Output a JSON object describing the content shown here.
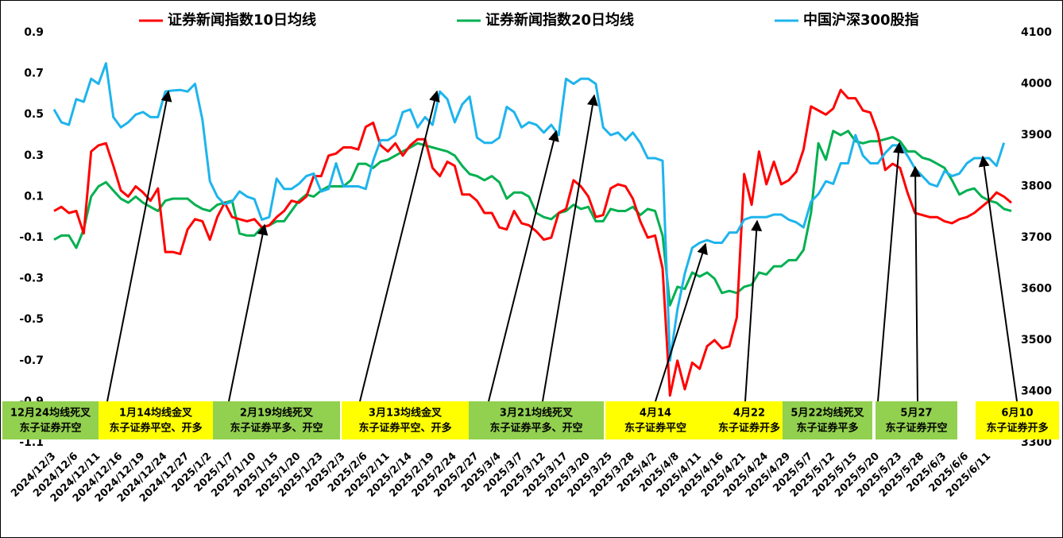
{
  "chart_data": {
    "type": "line",
    "categories": [
      "2024/12/3",
      null,
      null,
      "2024/12/6",
      null,
      null,
      "2024/12/11",
      null,
      null,
      "2024/12/16",
      null,
      null,
      "2024/12/19",
      null,
      null,
      "2024/12/24",
      null,
      null,
      "2024/12/27",
      null,
      null,
      "2025/1/2",
      null,
      null,
      "2025/1/7",
      null,
      null,
      "2025/1/10",
      null,
      null,
      "2025/1/15",
      null,
      null,
      "2025/1/20",
      null,
      null,
      "2025/1/23",
      null,
      null,
      "2025/2/3",
      null,
      null,
      "2025/2/6",
      null,
      null,
      "2025/2/11",
      null,
      null,
      "2025/2/14",
      null,
      null,
      "2025/2/19",
      null,
      null,
      "2025/2/24",
      null,
      null,
      "2025/2/27",
      null,
      null,
      "2025/3/4",
      null,
      null,
      "2025/3/7",
      null,
      null,
      "2025/3/12",
      null,
      null,
      "2025/3/17",
      null,
      null,
      "2025/3/20",
      null,
      null,
      "2025/3/25",
      null,
      null,
      "2025/3/28",
      null,
      null,
      "2025/4/2",
      null,
      null,
      "2025/4/8",
      null,
      null,
      "2025/4/11",
      null,
      null,
      "2025/4/16",
      null,
      null,
      "2025/4/21",
      null,
      null,
      "2025/4/24",
      null,
      null,
      "2025/4/29",
      null,
      null,
      "2025/5/7",
      null,
      null,
      "2025/5/12",
      null,
      null,
      "2025/5/15",
      null,
      null,
      "2025/5/20",
      null,
      null,
      "2025/5/23",
      null,
      null,
      "2025/5/28",
      null,
      null,
      "2025/6/3",
      null,
      null,
      "2025/6/6",
      null,
      null,
      "2025/6/11",
      null,
      null,
      null
    ],
    "series": [
      {
        "name": "证券新闻指数10日均线",
        "color": "#ff0000",
        "values": [
          0.03,
          0.05,
          0.02,
          0.03,
          -0.08,
          0.32,
          0.35,
          0.36,
          0.25,
          0.13,
          0.1,
          0.15,
          0.12,
          0.08,
          0.14,
          -0.17,
          -0.17,
          -0.18,
          -0.06,
          -0.01,
          -0.02,
          -0.11,
          0.0,
          0.07,
          0.0,
          -0.01,
          -0.02,
          -0.01,
          -0.05,
          -0.04,
          0.0,
          0.03,
          0.08,
          0.07,
          0.1,
          0.2,
          0.2,
          0.3,
          0.31,
          0.34,
          0.34,
          0.33,
          0.44,
          0.46,
          0.35,
          0.32,
          0.36,
          0.3,
          0.35,
          0.38,
          0.38,
          0.24,
          0.2,
          0.27,
          0.25,
          0.11,
          0.11,
          0.08,
          0.02,
          0.02,
          -0.05,
          -0.06,
          0.03,
          -0.03,
          -0.04,
          -0.07,
          -0.11,
          -0.1,
          0.02,
          0.04,
          0.18,
          0.15,
          0.1,
          0.0,
          0.01,
          0.14,
          0.16,
          0.15,
          0.09,
          -0.02,
          -0.1,
          -0.09,
          -0.25,
          -0.87,
          -0.7,
          -0.84,
          -0.71,
          -0.74,
          -0.63,
          -0.6,
          -0.64,
          -0.63,
          -0.49,
          0.21,
          0.06,
          0.32,
          0.16,
          0.27,
          0.16,
          0.18,
          0.22,
          0.33,
          0.54,
          0.52,
          0.5,
          0.53,
          0.62,
          0.58,
          0.58,
          0.52,
          0.51,
          0.41,
          0.23,
          0.26,
          0.24,
          0.12,
          0.02,
          0.01,
          0.0,
          0.0,
          -0.02,
          -0.03,
          -0.01,
          0.0,
          0.02,
          0.05,
          0.08,
          0.12,
          0.1,
          0.07
        ]
      },
      {
        "name": "证券新闻指数20日均线",
        "color": "#00b050",
        "values": [
          -0.11,
          -0.09,
          -0.09,
          -0.15,
          -0.06,
          0.1,
          0.15,
          0.17,
          0.13,
          0.09,
          0.07,
          0.1,
          0.07,
          0.05,
          0.03,
          0.08,
          0.09,
          0.09,
          0.09,
          0.06,
          0.04,
          0.03,
          0.06,
          0.07,
          0.08,
          -0.08,
          -0.09,
          -0.09,
          -0.05,
          -0.04,
          -0.02,
          -0.02,
          0.03,
          0.08,
          0.11,
          0.1,
          0.13,
          0.15,
          0.15,
          0.15,
          0.18,
          0.26,
          0.26,
          0.24,
          0.27,
          0.28,
          0.3,
          0.32,
          0.34,
          0.36,
          0.35,
          0.34,
          0.33,
          0.32,
          0.3,
          0.25,
          0.21,
          0.2,
          0.18,
          0.2,
          0.17,
          0.09,
          0.12,
          0.12,
          0.1,
          0.02,
          0.0,
          -0.01,
          0.02,
          0.03,
          0.06,
          0.04,
          0.05,
          -0.02,
          -0.02,
          0.04,
          0.03,
          0.03,
          0.05,
          0.01,
          0.04,
          0.03,
          -0.09,
          -0.43,
          -0.34,
          -0.35,
          -0.27,
          -0.29,
          -0.27,
          -0.3,
          -0.37,
          -0.36,
          -0.37,
          -0.34,
          -0.33,
          -0.27,
          -0.28,
          -0.24,
          -0.24,
          -0.21,
          -0.21,
          -0.16,
          0.02,
          0.36,
          0.28,
          0.42,
          0.4,
          0.42,
          0.37,
          0.36,
          0.37,
          0.37,
          0.38,
          0.39,
          0.37,
          0.32,
          0.32,
          0.29,
          0.28,
          0.26,
          0.24,
          0.18,
          0.11,
          0.13,
          0.14,
          0.1,
          0.08,
          0.07,
          0.04,
          0.03
        ]
      },
      {
        "name": "中国沪深300股指",
        "color": "#1eb4ec",
        "axis": "y2",
        "values": [
          3950,
          3925,
          3920,
          3970,
          3965,
          4010,
          4000,
          4040,
          3935,
          3915,
          3925,
          3940,
          3945,
          3935,
          3935,
          3985,
          3987,
          3988,
          3985,
          4000,
          3930,
          3810,
          3780,
          3765,
          3770,
          3790,
          3780,
          3775,
          3735,
          3740,
          3815,
          3795,
          3795,
          3805,
          3820,
          3825,
          3790,
          3795,
          3845,
          3800,
          3800,
          3800,
          3795,
          3850,
          3890,
          3890,
          3900,
          3945,
          3950,
          3915,
          3935,
          3920,
          3985,
          3970,
          3925,
          3960,
          3975,
          3895,
          3885,
          3885,
          3895,
          3955,
          3945,
          3915,
          3925,
          3920,
          3905,
          3920,
          3900,
          4010,
          4000,
          4010,
          4010,
          4000,
          3915,
          3900,
          3905,
          3890,
          3905,
          3885,
          3855,
          3855,
          3850,
          3460,
          3560,
          3630,
          3680,
          3690,
          3695,
          3690,
          3690,
          3710,
          3710,
          3735,
          3740,
          3740,
          3740,
          3745,
          3745,
          3735,
          3730,
          3720,
          3770,
          3785,
          3810,
          3805,
          3845,
          3845,
          3900,
          3860,
          3845,
          3845,
          3865,
          3880,
          3880,
          3860,
          3835,
          3820,
          3805,
          3800,
          3830,
          3820,
          3825,
          3845,
          3855,
          3855,
          3855,
          3840,
          3885,
          null
        ]
      }
    ],
    "ylim": [
      -1.1,
      0.9
    ],
    "yticks": [
      0.9,
      0.7,
      0.5,
      0.3,
      0.1,
      -0.1,
      -0.3,
      -0.5,
      -0.7,
      -0.9,
      -1.1
    ],
    "y2lim": [
      3300,
      4100
    ],
    "y2ticks": [
      4100,
      4000,
      3900,
      3800,
      3700,
      3600,
      3500,
      3400,
      3300
    ],
    "grid": false,
    "annotations": [
      {
        "text": [
          "12月24均线死叉",
          "东子证券开空"
        ],
        "color": "#92d050"
      },
      {
        "text": [
          "1月14均线金叉",
          "东子证券平空、开多"
        ],
        "color": "#ffff00"
      },
      {
        "text": [
          "2月19均线死叉",
          "东子证券平多、开空"
        ],
        "color": "#92d050"
      },
      {
        "text": [
          "3月13均线金叉",
          "东子证券平空、开多"
        ],
        "color": "#ffff00"
      },
      {
        "text": [
          "3月21均线死叉",
          "东子证券平多、开空"
        ],
        "color": "#92d050"
      },
      {
        "text": [
          "4月14",
          "东子证券平空"
        ],
        "color": "#ffff00"
      },
      {
        "text": [
          "4月22",
          "东子证券开多"
        ],
        "color": "#ffff00"
      },
      {
        "text": [
          "5月22均线死叉",
          "东子证券平多"
        ],
        "color": "#92d050"
      },
      {
        "text": [
          "5月27",
          "东子证券开空"
        ],
        "color": "#92d050"
      },
      {
        "text": [
          "6月10",
          "东子证券开多"
        ],
        "color": "#ffff00"
      }
    ]
  }
}
